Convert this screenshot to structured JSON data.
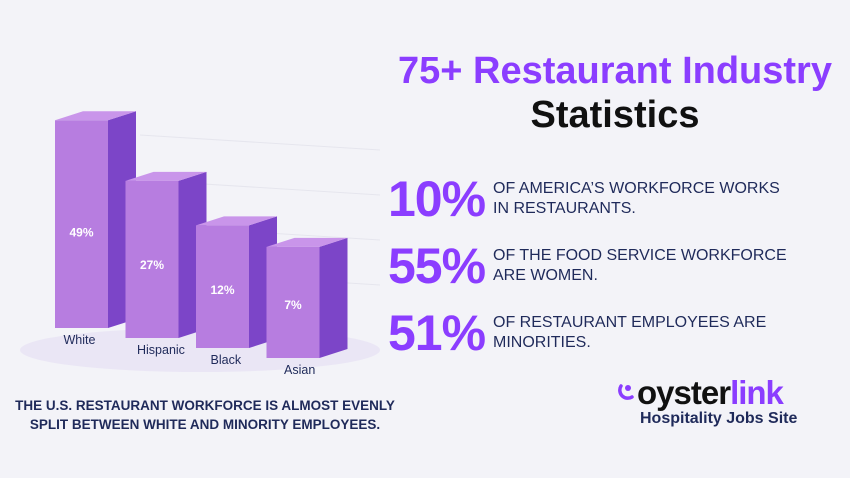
{
  "header": {
    "title_line1": "75+ Restaurant Industry",
    "title_line2": "Statistics"
  },
  "stats": [
    {
      "value": "10%",
      "text": "OF AMERICA’S WORKFORCE WORKS IN RESTAURANTS."
    },
    {
      "value": "55%",
      "text": "OF THE FOOD SERVICE WORKFORCE ARE WOMEN."
    },
    {
      "value": "51%",
      "text": "OF RESTAURANT EMPLOYEES ARE MINORITIES."
    }
  ],
  "caption": "THE U.S. RESTAURANT WORKFORCE IS ALMOST EVENLY SPLIT BETWEEN WHITE AND MINORITY EMPLOYEES.",
  "logo": {
    "part1": "oyster",
    "part2": "link",
    "tagline": "Hospitality Jobs Site"
  },
  "colors": {
    "accent": "#8b3dff",
    "navy": "#1f2a5a",
    "bar_front": "#b77de0",
    "bar_side": "#7c45c8",
    "bar_top": "#c995ea"
  },
  "chart_data": {
    "type": "bar",
    "style": "3d",
    "categories": [
      "White",
      "Hispanic",
      "Black",
      "Asian"
    ],
    "values": [
      49,
      27,
      12,
      7
    ],
    "data_labels": [
      "49%",
      "27%",
      "12%",
      "7%"
    ],
    "title": "",
    "xlabel": "",
    "ylabel": ""
  }
}
